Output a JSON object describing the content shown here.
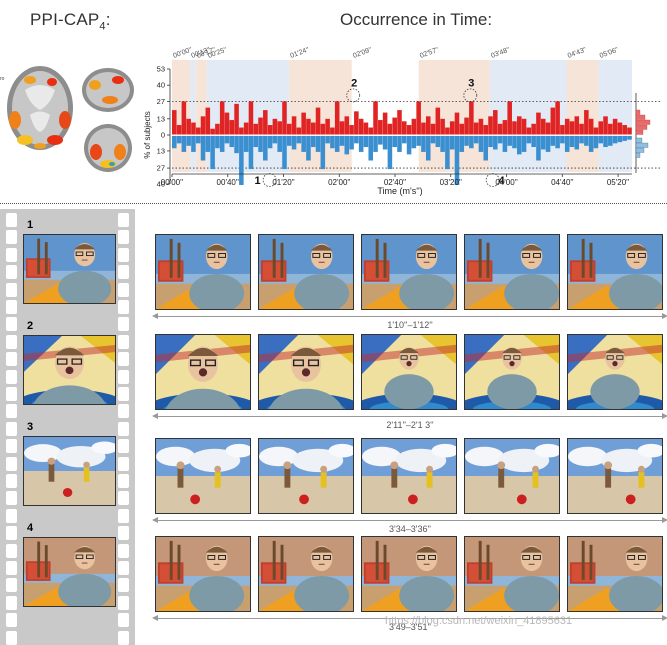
{
  "titles": {
    "left": "PPI-CAP",
    "left_sub": "4",
    "left_suffix": ":",
    "right": "Occurrence in Time:"
  },
  "brain": {
    "small_label": "ro"
  },
  "chart_data": {
    "type": "bar",
    "top_labels": [
      "00'00''",
      "00'13''",
      "00'17''",
      "00'25''",
      "01'24''",
      "02'09''",
      "02'57''",
      "03'48''",
      "04'43''",
      "05'06''"
    ],
    "y_ticks_up": [
      "53",
      "40",
      "27",
      "13"
    ],
    "y_zero": "0",
    "y_ticks_down": [
      "13",
      "27",
      "40"
    ],
    "ylabel": "% of subjects",
    "xlabel": "Time (m's'')",
    "x_ticks": [
      "00'00''",
      "00'40''",
      "01'20''",
      "02'00''",
      "02'40''",
      "03'20''",
      "04'00''",
      "04'40''",
      "05'20''"
    ],
    "x_tick_seconds": [
      0,
      40,
      80,
      120,
      160,
      200,
      240,
      280,
      320
    ],
    "x_range_seconds": [
      0,
      330
    ],
    "y_range": [
      -40,
      53
    ],
    "threshold": 27,
    "segments": [
      {
        "start": 0,
        "end": 13,
        "color": "#f5e1d4"
      },
      {
        "start": 13,
        "end": 17,
        "color": "#dfe8f4"
      },
      {
        "start": 17,
        "end": 25,
        "color": "#f5e1d4"
      },
      {
        "start": 25,
        "end": 84,
        "color": "#dfe8f4"
      },
      {
        "start": 84,
        "end": 129,
        "color": "#f5e1d4"
      },
      {
        "start": 129,
        "end": 177,
        "color": "#ffffff"
      },
      {
        "start": 177,
        "end": 228,
        "color": "#f5e1d4"
      },
      {
        "start": 228,
        "end": 283,
        "color": "#dfe8f4"
      },
      {
        "start": 283,
        "end": 306,
        "color": "#f5e1d4"
      },
      {
        "start": 306,
        "end": 330,
        "color": "#dfe8f4"
      }
    ],
    "markers": [
      {
        "label": "1",
        "t": 70,
        "side": "neg",
        "value": -40
      },
      {
        "label": "2",
        "t": 130,
        "side": "pos",
        "value": 27
      },
      {
        "label": "3",
        "t": 214,
        "side": "pos",
        "value": 27
      },
      {
        "label": "4",
        "t": 230,
        "side": "neg",
        "value": -40
      }
    ],
    "series": [
      {
        "color": "#e02424",
        "values": [
          20,
          8,
          27,
          13,
          10,
          6,
          15,
          22,
          5,
          9,
          27,
          18,
          12,
          25,
          6,
          10,
          27,
          9,
          14,
          20,
          8,
          13,
          11,
          27,
          9,
          15,
          6,
          18,
          13,
          10,
          22,
          9,
          13,
          6,
          27,
          11,
          15,
          8,
          19,
          13,
          10,
          6,
          27,
          12,
          18,
          9,
          14,
          20,
          11,
          8,
          13,
          27,
          10,
          15,
          9,
          22,
          13,
          6,
          11,
          18,
          9,
          14,
          27,
          10,
          13,
          8,
          15,
          20,
          9,
          12,
          27,
          11,
          15,
          13,
          6,
          9,
          18,
          13,
          10,
          22,
          27,
          8,
          13,
          11,
          15,
          9,
          20,
          13,
          6,
          11,
          15,
          9,
          13,
          10,
          8,
          6
        ]
      },
      {
        "color": "#3a8fd0",
        "values": [
          -10,
          -6,
          -13,
          -8,
          -13,
          -6,
          -20,
          -13,
          -27,
          -10,
          -13,
          -6,
          -9,
          -14,
          -40,
          -13,
          -27,
          -9,
          -13,
          -20,
          -10,
          -6,
          -13,
          -27,
          -8,
          -11,
          -6,
          -13,
          -20,
          -9,
          -13,
          -27,
          -6,
          -10,
          -13,
          -8,
          -15,
          -11,
          -6,
          -13,
          -9,
          -20,
          -13,
          -7,
          -11,
          -27,
          -9,
          -13,
          -6,
          -15,
          -10,
          -8,
          -13,
          -20,
          -6,
          -9,
          -13,
          -27,
          -11,
          -40,
          -13,
          -8,
          -10,
          -6,
          -13,
          -20,
          -9,
          -11,
          -6,
          -13,
          -8,
          -10,
          -15,
          -13,
          -6,
          -9,
          -20,
          -11,
          -13,
          -8,
          -10,
          -6,
          -13,
          -9,
          -11,
          -6,
          -8,
          -13,
          -10,
          -6,
          -9,
          -8,
          -6,
          -5,
          -4,
          -3
        ]
      }
    ],
    "hist_pos": [
      4,
      9,
      14,
      11,
      7
    ],
    "hist_neg": [
      6,
      12,
      8,
      4
    ]
  },
  "rows": [
    {
      "label": "1",
      "time": "1'10''–1'12''",
      "scene": "kitchen"
    },
    {
      "label": "2",
      "time": "2'11''–2'1  3''",
      "scene": "surprise"
    },
    {
      "label": "3",
      "time": "3'34–3'36''",
      "scene": "beach"
    },
    {
      "label": "4",
      "time": "3'49–3'51''",
      "scene": "kitchen2"
    }
  ],
  "watermark": "https://blog.csdn.net/weixin_41895631",
  "colors": {
    "red": "#e02424",
    "blue": "#3a8fd0",
    "film": "#c9c9c9"
  }
}
